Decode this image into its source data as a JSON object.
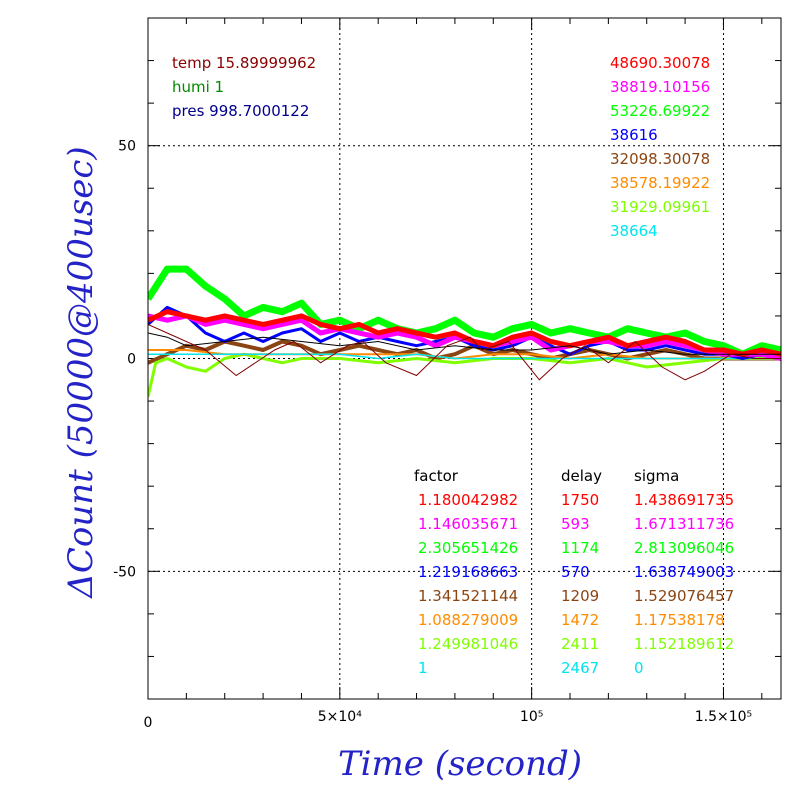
{
  "chart_data": {
    "type": "line",
    "xlabel": "Time (second)",
    "ylabel": "ΔCount (50000@400usec)",
    "xlim": [
      0,
      165000
    ],
    "ylim": [
      -80,
      80
    ],
    "grid": true,
    "x_tick_labels": [
      {
        "value": 0,
        "label": "0"
      },
      {
        "value": 50000,
        "label": "5×10⁴"
      },
      {
        "value": 100000,
        "label": "10⁵"
      },
      {
        "value": 150000,
        "label": "1.5×10⁵"
      }
    ],
    "y_tick_labels": [
      {
        "value": 50,
        "label": "50"
      },
      {
        "value": 0,
        "label": "0"
      },
      {
        "value": -50,
        "label": "-50"
      }
    ],
    "env": [
      {
        "text": "temp 15.89999962",
        "color": "#8b0000"
      },
      {
        "text": "humi 1",
        "color": "#008b00"
      },
      {
        "text": "pres 998.7000122",
        "color": "#00008b"
      }
    ],
    "table_headers": {
      "factor": "factor",
      "delay": "delay",
      "sigma": "sigma"
    },
    "series": [
      {
        "count": "48690.30078",
        "factor": "1.180042982",
        "delay": "1750",
        "sigma": "1.438691735",
        "color": "#ff0000",
        "x": [
          0,
          5000,
          10000,
          15000,
          20000,
          25000,
          30000,
          35000,
          40000,
          45000,
          50000,
          55000,
          60000,
          65000,
          70000,
          75000,
          80000,
          85000,
          90000,
          95000,
          100000,
          105000,
          110000,
          115000,
          120000,
          125000,
          130000,
          135000,
          140000,
          145000,
          150000,
          155000,
          160000,
          165000
        ],
        "y": [
          9,
          11,
          10,
          9,
          10,
          9,
          8,
          9,
          10,
          8,
          7,
          8,
          6,
          7,
          6,
          5,
          6,
          4,
          3,
          5,
          6,
          4,
          3,
          4,
          5,
          3,
          4,
          5,
          4,
          2,
          2,
          1,
          2,
          1
        ]
      },
      {
        "count": "38819.10156",
        "factor": "1.146035671",
        "delay": "593",
        "sigma": "1.671311736",
        "color": "#ff00ff",
        "x": [
          0,
          5000,
          10000,
          15000,
          20000,
          25000,
          30000,
          35000,
          40000,
          45000,
          50000,
          55000,
          60000,
          65000,
          70000,
          75000,
          80000,
          85000,
          90000,
          95000,
          100000,
          105000,
          110000,
          115000,
          120000,
          125000,
          130000,
          135000,
          140000,
          145000,
          150000,
          155000,
          160000,
          165000
        ],
        "y": [
          10,
          9,
          10,
          8,
          9,
          8,
          7,
          8,
          9,
          6,
          7,
          6,
          5,
          6,
          5,
          3,
          5,
          4,
          3,
          4,
          5,
          2,
          3,
          4,
          4,
          3,
          3,
          4,
          3,
          2,
          1,
          1,
          1,
          0
        ]
      },
      {
        "count": "53226.69922",
        "factor": "2.305651426",
        "delay": "1174",
        "sigma": "2.813096046",
        "color": "#00ff00",
        "x": [
          0,
          5000,
          10000,
          15000,
          20000,
          25000,
          30000,
          35000,
          40000,
          45000,
          50000,
          55000,
          60000,
          65000,
          70000,
          75000,
          80000,
          85000,
          90000,
          95000,
          100000,
          105000,
          110000,
          115000,
          120000,
          125000,
          130000,
          135000,
          140000,
          145000,
          150000,
          155000,
          160000,
          165000
        ],
        "y": [
          14,
          21,
          21,
          17,
          14,
          10,
          12,
          11,
          13,
          8,
          9,
          7,
          9,
          7,
          6,
          7,
          9,
          6,
          5,
          7,
          8,
          6,
          7,
          6,
          5,
          7,
          6,
          5,
          6,
          4,
          3,
          1,
          3,
          2
        ]
      },
      {
        "count": "38616",
        "factor": "1.219168663",
        "delay": "570",
        "sigma": "1.638749003",
        "color": "#0000ff",
        "x": [
          0,
          5000,
          10000,
          15000,
          20000,
          25000,
          30000,
          35000,
          40000,
          45000,
          50000,
          55000,
          60000,
          65000,
          70000,
          75000,
          80000,
          85000,
          90000,
          95000,
          100000,
          105000,
          110000,
          115000,
          120000,
          125000,
          130000,
          135000,
          140000,
          145000,
          150000,
          155000,
          160000,
          165000
        ],
        "y": [
          8,
          12,
          10,
          6,
          4,
          6,
          4,
          6,
          7,
          4,
          6,
          4,
          5,
          4,
          3,
          4,
          5,
          3,
          2,
          3,
          5,
          3,
          1,
          3,
          4,
          2,
          2,
          3,
          2,
          1,
          1,
          0,
          1,
          0
        ]
      },
      {
        "count": "32098.30078",
        "factor": "1.341521144",
        "delay": "1209",
        "sigma": "1.529076457",
        "color": "#8b4513",
        "x": [
          0,
          5000,
          10000,
          15000,
          20000,
          25000,
          30000,
          35000,
          40000,
          45000,
          50000,
          55000,
          60000,
          65000,
          70000,
          75000,
          80000,
          85000,
          90000,
          95000,
          100000,
          105000,
          110000,
          115000,
          120000,
          125000,
          130000,
          135000,
          140000,
          145000,
          150000,
          155000,
          160000,
          165000
        ],
        "y": [
          -1,
          1,
          3,
          2,
          4,
          3,
          2,
          4,
          3,
          1,
          2,
          3,
          2,
          1,
          2,
          0,
          1,
          3,
          1,
          2,
          1,
          0,
          1,
          2,
          1,
          0,
          1,
          2,
          1,
          0,
          0,
          0,
          0,
          0
        ]
      },
      {
        "count": "38578.19922",
        "factor": "1.088279009",
        "delay": "1472",
        "sigma": "1.17538178",
        "color": "#ff8c00",
        "x": [
          0,
          10000,
          20000,
          30000,
          40000,
          50000,
          60000,
          70000,
          80000,
          90000,
          100000,
          110000,
          120000,
          130000,
          140000,
          150000,
          165000
        ],
        "y": [
          2,
          2,
          1,
          1,
          1,
          1,
          1,
          1,
          0,
          1,
          1,
          0,
          1,
          0,
          0,
          0,
          0
        ]
      },
      {
        "count": "31929.09961",
        "factor": "1.249981046",
        "delay": "2411",
        "sigma": "1.152189612",
        "color": "#7fff00",
        "x": [
          0,
          2000,
          5000,
          10000,
          15000,
          20000,
          25000,
          30000,
          35000,
          40000,
          50000,
          60000,
          70000,
          80000,
          90000,
          100000,
          110000,
          120000,
          130000,
          140000,
          150000,
          165000
        ],
        "y": [
          -9,
          -1,
          0,
          -2,
          -3,
          0,
          1,
          0,
          -1,
          0,
          0,
          -1,
          0,
          -1,
          0,
          0,
          -1,
          0,
          -2,
          -1,
          0,
          0
        ]
      },
      {
        "count": "38664",
        "factor": "1",
        "delay": "2467",
        "sigma": "0",
        "color": "#00e5ee",
        "x": [
          0,
          10000,
          20000,
          30000,
          40000,
          50000,
          60000,
          70000,
          80000,
          90000,
          100000,
          110000,
          120000,
          130000,
          140000,
          150000,
          165000
        ],
        "y": [
          1,
          1,
          1,
          1,
          1,
          1,
          0,
          1,
          0,
          0,
          0,
          0,
          0,
          0,
          0,
          0,
          0
        ]
      }
    ],
    "pressure_curve": {
      "color": "#800000",
      "x": [
        0,
        5000,
        15000,
        23000,
        33000,
        38000,
        45000,
        52000,
        56000,
        62000,
        70000,
        78000,
        84000,
        87000,
        94000,
        102000,
        108000,
        114000,
        120000,
        127000,
        134000,
        140000,
        145000,
        152000,
        158000,
        165000
      ],
      "y": [
        8,
        6,
        2,
        -4,
        2,
        4,
        -1,
        3,
        4,
        -1,
        -4,
        3,
        5,
        2,
        4,
        -5,
        0,
        3,
        -1,
        4,
        -2,
        -5,
        -3,
        1,
        0,
        0
      ]
    },
    "black_curve": {
      "color": "#000000",
      "x": [
        0,
        5000,
        10000,
        20000,
        30000,
        40000,
        50000,
        60000,
        70000,
        80000,
        90000,
        100000,
        110000,
        120000,
        130000,
        140000,
        150000,
        165000
      ],
      "y": [
        6,
        5,
        3,
        4,
        5,
        4,
        3,
        4,
        2,
        3,
        2,
        2,
        3,
        1,
        2,
        1,
        1,
        1
      ]
    }
  }
}
